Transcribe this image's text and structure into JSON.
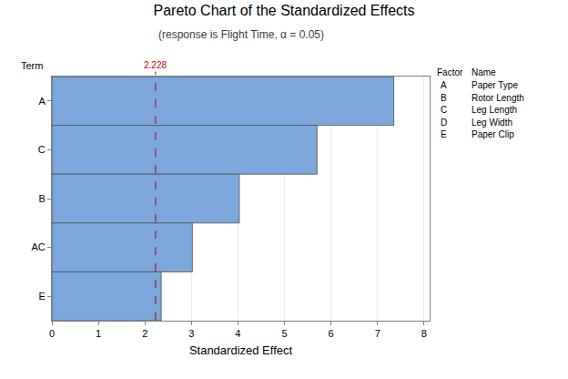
{
  "chart_data": {
    "type": "bar",
    "orientation": "horizontal",
    "title": "Pareto Chart of the Standardized Effects",
    "subtitle": "(response is Flight Time, α = 0.05)",
    "xlabel": "Standardized Effect",
    "ylabel": "Term",
    "categories": [
      "A",
      "C",
      "B",
      "AC",
      "E"
    ],
    "values": [
      7.35,
      5.7,
      4.03,
      3.02,
      2.35
    ],
    "color": "#7ba7db",
    "xlim": [
      0,
      8.12
    ],
    "xticks": [
      0,
      1,
      2,
      3,
      4,
      5,
      6,
      7,
      8
    ],
    "grid": true,
    "reference_line": {
      "value": 2.228,
      "color": "#c00000"
    },
    "factors": {
      "header": [
        "Factor",
        "Name"
      ],
      "rows": [
        [
          "A",
          "Paper Type"
        ],
        [
          "B",
          "Rotor Length"
        ],
        [
          "C",
          "Leg Length"
        ],
        [
          "D",
          "Leg Width"
        ],
        [
          "E",
          "Paper Clip"
        ]
      ]
    }
  }
}
